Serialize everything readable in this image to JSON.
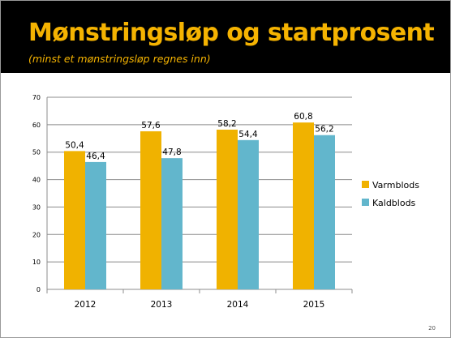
{
  "slide": {
    "title": "Mønstringsløp og startprosent",
    "subtitle": "(minst et mønstringsløp regnes inn)",
    "page_number": "20"
  },
  "colors": {
    "header_background": "#000000",
    "title_text": "#f5b301",
    "series": [
      "#f0b200",
      "#62b6cc"
    ]
  },
  "chart_data": {
    "type": "bar",
    "title": "",
    "xlabel": "",
    "ylabel": "",
    "categories": [
      "2012",
      "2013",
      "2014",
      "2015"
    ],
    "series": [
      {
        "name": "Varmblods",
        "values": [
          50.4,
          57.6,
          58.2,
          60.8
        ],
        "labels": [
          "50,4",
          "57,6",
          "58,2",
          "60,8"
        ]
      },
      {
        "name": "Kaldblods",
        "values": [
          46.4,
          47.8,
          54.4,
          56.2
        ],
        "labels": [
          "46,4",
          "47,8",
          "54,4",
          "56,2"
        ]
      }
    ],
    "ylim": [
      0,
      70
    ],
    "yticks": [
      0,
      10,
      20,
      30,
      40,
      50,
      60,
      70
    ],
    "grid": true,
    "legend_position": "right"
  }
}
